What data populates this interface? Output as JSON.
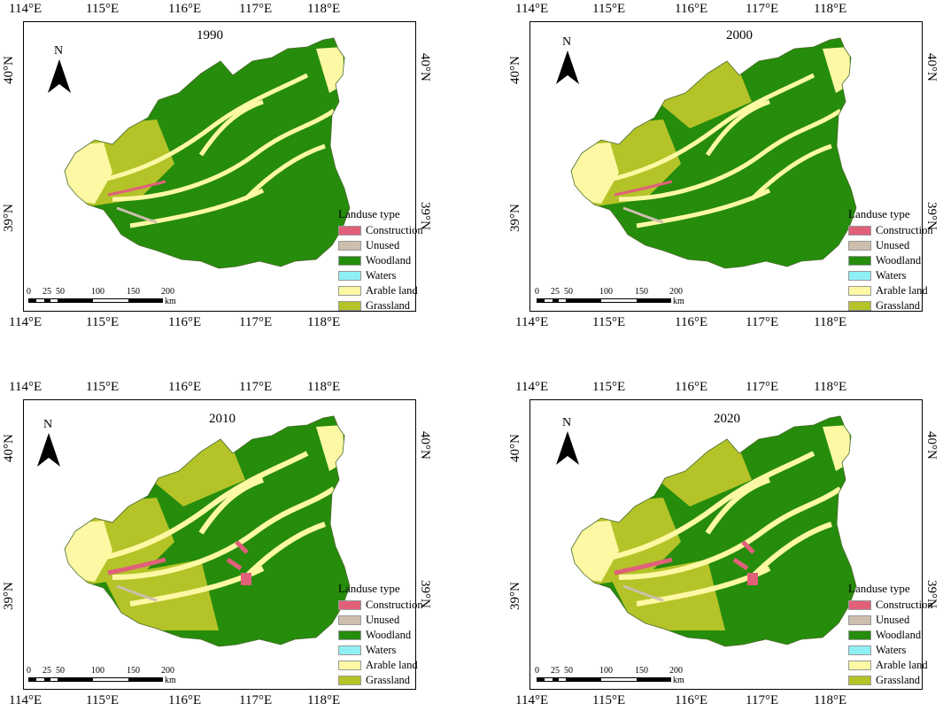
{
  "panels": [
    {
      "year": "1990",
      "lon_ticks": [
        "114°E",
        "115°E",
        "116°E",
        "117°E",
        "118°E"
      ],
      "lat_ticks": [
        "40°N",
        "39°N"
      ],
      "north_label": "N",
      "legend": {
        "title": "Landuse type",
        "items": [
          "Construction",
          "Unused",
          "Woodland",
          "Waters",
          "Arable land",
          "Grassland"
        ]
      },
      "scale": {
        "ticks": [
          "0",
          "25",
          "50",
          "100",
          "150",
          "200"
        ],
        "unit": "km"
      }
    },
    {
      "year": "2000",
      "lon_ticks": [
        "114°E",
        "115°E",
        "116°E",
        "117°E",
        "118°E"
      ],
      "lat_ticks": [
        "40°N",
        "39°N"
      ],
      "north_label": "N",
      "legend": {
        "title": "Landuse type",
        "items": [
          "Construction",
          "Unused",
          "Woodland",
          "Waters",
          "Arable land",
          "Grassland"
        ]
      },
      "scale": {
        "ticks": [
          "0",
          "25",
          "50",
          "100",
          "150",
          "200"
        ],
        "unit": "km"
      }
    },
    {
      "year": "2010",
      "lon_ticks": [
        "114°E",
        "115°E",
        "116°E",
        "117°E",
        "118°E"
      ],
      "lat_ticks": [
        "40°N",
        "39°N"
      ],
      "north_label": "N",
      "legend": {
        "title": "Landuse type",
        "items": [
          "Construction",
          "Unused",
          "Woodland",
          "Waters",
          "Arable land",
          "Grassland"
        ]
      },
      "scale": {
        "ticks": [
          "0",
          "25",
          "50",
          "100",
          "150",
          "200"
        ],
        "unit": "km"
      }
    },
    {
      "year": "2020",
      "lon_ticks": [
        "114°E",
        "115°E",
        "116°E",
        "117°E",
        "118°E"
      ],
      "lat_ticks": [
        "40°N",
        "39°N"
      ],
      "north_label": "N",
      "legend": {
        "title": "Landuse type",
        "items": [
          "Construction",
          "Unused",
          "Woodland",
          "Waters",
          "Arable land",
          "Grassland"
        ]
      },
      "scale": {
        "ticks": [
          "0",
          "25",
          "50",
          "100",
          "150",
          "200"
        ],
        "unit": "km"
      }
    }
  ],
  "colors": {
    "construction": "#e0607a",
    "unused": "#cdbfae",
    "woodland": "#268c0c",
    "waters": "#8ef0f5",
    "arable_land": "#fcf8a4",
    "grassland": "#b4c327"
  }
}
